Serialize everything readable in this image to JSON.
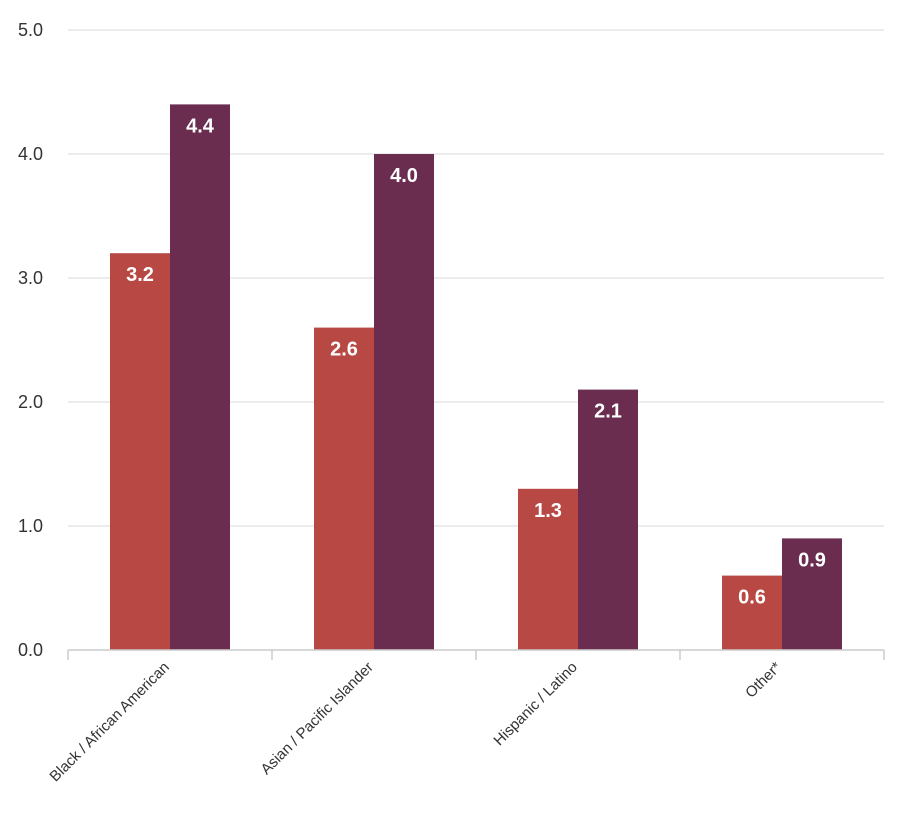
{
  "chart_data": {
    "type": "bar",
    "title": "",
    "xlabel": "",
    "ylabel": "",
    "ylim": [
      0,
      5
    ],
    "yticks": [
      "0.0",
      "1.0",
      "2.0",
      "3.0",
      "4.0",
      "5.0"
    ],
    "grid": true,
    "categories": [
      "Black / African American",
      "Asian / Pacific Islander",
      "Hispanic / Latino",
      "Other*"
    ],
    "series": [
      {
        "name": "",
        "color": "#b84843",
        "values": [
          3.2,
          2.6,
          1.3,
          0.6
        ],
        "labels": [
          "3.2",
          "2.6",
          "1.3",
          "0.6"
        ]
      },
      {
        "name": "",
        "color": "#6a2d4f",
        "values": [
          4.4,
          4.0,
          2.1,
          0.9
        ],
        "labels": [
          "4.4",
          "4.0",
          "2.1",
          "0.9"
        ]
      }
    ]
  }
}
